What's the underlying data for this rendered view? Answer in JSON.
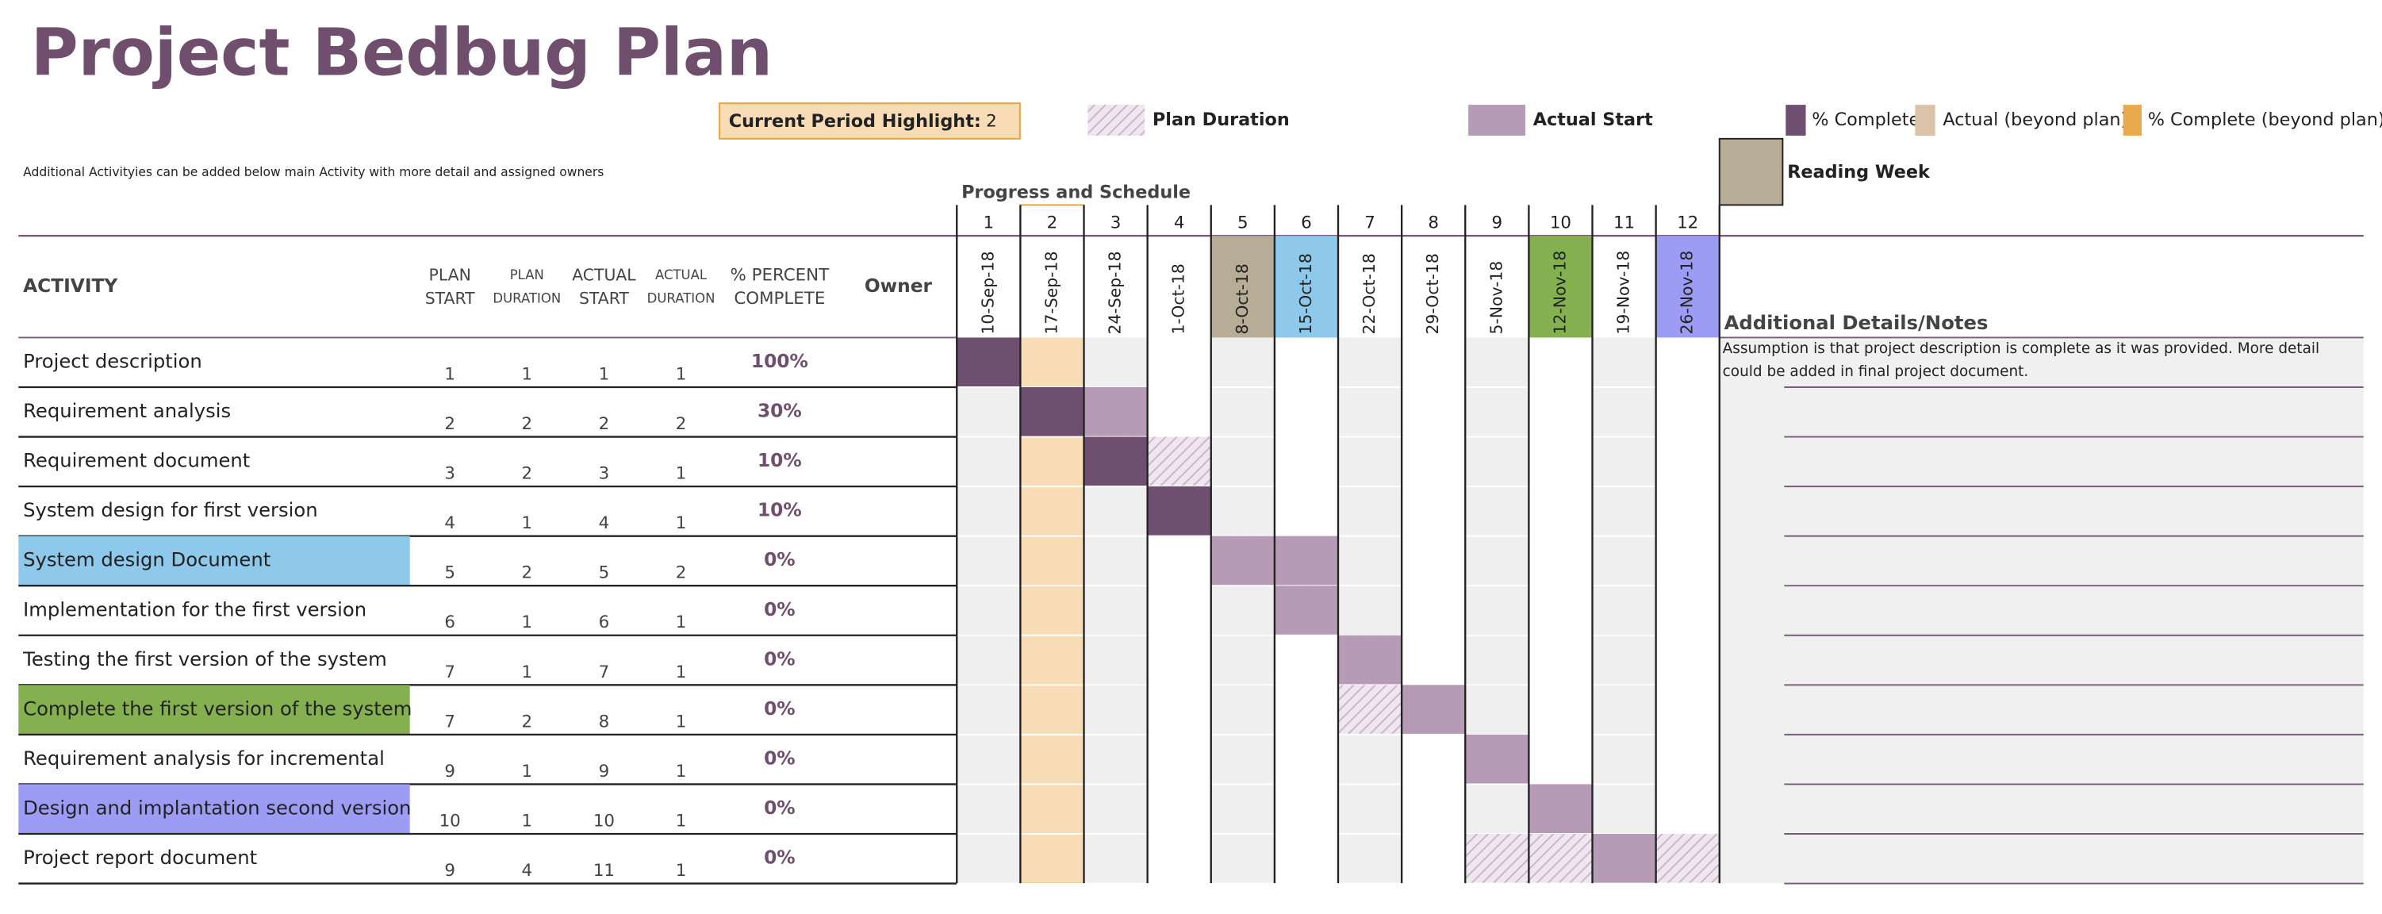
{
  "title": "Project Bedbug Plan",
  "highlight": {
    "label": "Current Period Highlight:",
    "value": 2,
    "color": "#f7dcb5",
    "border": "#e8a33c"
  },
  "legend": {
    "plan_duration": "Plan Duration",
    "actual_start": "Actual Start",
    "percent_complete": "% Complete",
    "actual_beyond": "Actual (beyond plan)",
    "percent_beyond": "% Complete (beyond plan)",
    "reading_week": "Reading Week"
  },
  "note": "Additional Activityies can be added below main Activity with more detail and assigned owners",
  "section": "Progress and Schedule",
  "headers": [
    [
      "ACTIVITY"
    ],
    [
      "PLAN",
      "START"
    ],
    [
      "PLAN",
      "DURATION"
    ],
    [
      "ACTUAL",
      "START"
    ],
    [
      "ACTUAL",
      "DURATION"
    ],
    [
      "% PERCENT",
      "COMPLETE"
    ],
    [
      "Owner"
    ]
  ],
  "periods": [
    {
      "number": 1,
      "date": "10-Sep-18"
    },
    {
      "number": 2,
      "date": "17-Sep-18"
    },
    {
      "number": 3,
      "date": "24-Sep-18"
    },
    {
      "number": 4,
      "date": "1-Oct-18"
    },
    {
      "number": 5,
      "date": "8-Oct-18",
      "color": "#b7ac95"
    },
    {
      "number": 6,
      "date": "15-Oct-18",
      "color": "#8ec8ea"
    },
    {
      "number": 7,
      "date": "22-Oct-18"
    },
    {
      "number": 8,
      "date": "29-Oct-18"
    },
    {
      "number": 9,
      "date": "5-Nov-18"
    },
    {
      "number": 10,
      "date": "12-Nov-18",
      "color": "#84b04f"
    },
    {
      "number": 11,
      "date": "19-Nov-18"
    },
    {
      "number": 12,
      "date": "26-Nov-18",
      "color": "#9d9cf4"
    }
  ],
  "notes_header": "Additional Details/Notes",
  "rows": [
    {
      "activity": "Project description",
      "plan_start": 1,
      "plan_duration": 1,
      "actual_start": 1,
      "actual_duration": 1,
      "percent": {
        "value": 100,
        "label": "100%"
      },
      "note": "Assumption is that project description is complete as it was provided. More detail could be added in final project document."
    },
    {
      "activity": "Requirement analysis",
      "plan_start": 2,
      "plan_duration": 2,
      "actual_start": 2,
      "actual_duration": 2,
      "percent": {
        "value": 30,
        "label": "30%"
      }
    },
    {
      "activity": "Requirement document",
      "plan_start": 3,
      "plan_duration": 2,
      "actual_start": 3,
      "actual_duration": 1,
      "percent": {
        "value": 10,
        "label": "10%"
      }
    },
    {
      "activity": "System design for first version",
      "plan_start": 4,
      "plan_duration": 1,
      "actual_start": 4,
      "actual_duration": 1,
      "percent": {
        "value": 10,
        "label": "10%"
      }
    },
    {
      "activity": "System design Document",
      "plan_start": 5,
      "plan_duration": 2,
      "actual_start": 5,
      "actual_duration": 2,
      "percent": {
        "value": 0,
        "label": "0%"
      },
      "color": "#8ec8ea"
    },
    {
      "activity": "Implementation for the first version",
      "plan_start": 6,
      "plan_duration": 1,
      "actual_start": 6,
      "actual_duration": 1,
      "percent": {
        "value": 0,
        "label": "0%"
      }
    },
    {
      "activity": "Testing the first version of the system",
      "plan_start": 7,
      "plan_duration": 1,
      "actual_start": 7,
      "actual_duration": 1,
      "percent": {
        "value": 0,
        "label": "0%"
      }
    },
    {
      "activity": "Complete the first version of the system",
      "plan_start": 7,
      "plan_duration": 2,
      "actual_start": 8,
      "actual_duration": 1,
      "percent": {
        "value": 0,
        "label": "0%"
      },
      "color": "#84b04f"
    },
    {
      "activity": "Requirement analysis for incremental",
      "plan_start": 9,
      "plan_duration": 1,
      "actual_start": 9,
      "actual_duration": 1,
      "percent": {
        "value": 0,
        "label": "0%"
      }
    },
    {
      "activity": "Design and implantation second version",
      "plan_start": 10,
      "plan_duration": 1,
      "actual_start": 10,
      "actual_duration": 1,
      "percent": {
        "value": 0,
        "label": "0%"
      },
      "color": "#9d9cf4"
    },
    {
      "activity": "Project report document",
      "plan_start": 9,
      "plan_duration": 4,
      "actual_start": 11,
      "actual_duration": 1,
      "percent": {
        "value": 0,
        "label": "0%"
      }
    }
  ]
}
